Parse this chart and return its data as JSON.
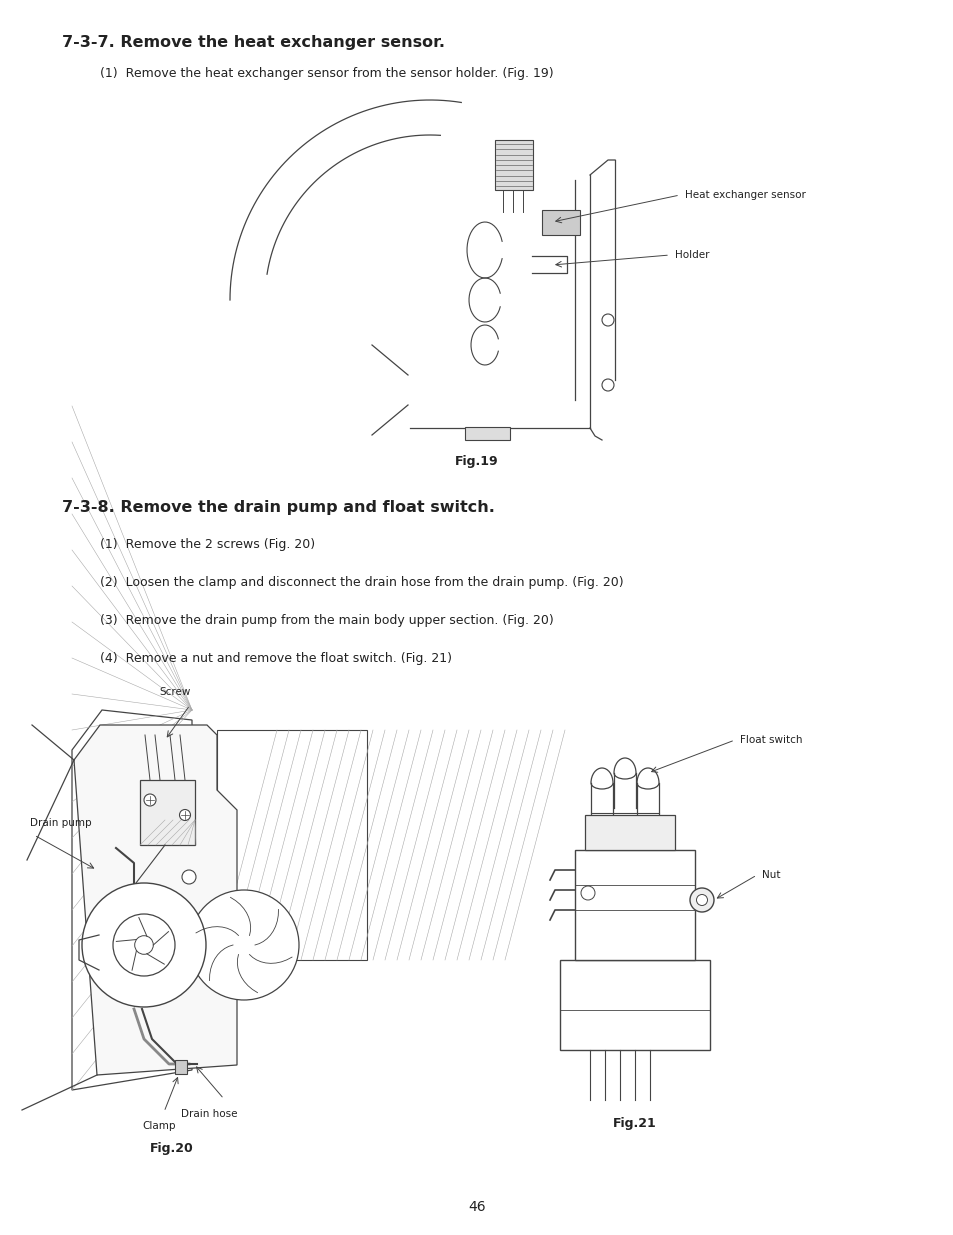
{
  "bg_color": "#ffffff",
  "page_width": 9.54,
  "page_height": 12.35,
  "title1": "7-3-7. Remove the heat exchanger sensor.",
  "step1_1": "(1)  Remove the heat exchanger sensor from the sensor holder. (Fig. 19)",
  "fig19_label": "Fig.19",
  "title2": "7-3-8. Remove the drain pump and float switch.",
  "step2_1": "(1)  Remove the 2 screws (Fig. 20)",
  "step2_2": "(2)  Loosen the clamp and disconnect the drain hose from the drain pump. (Fig. 20)",
  "step2_3": "(3)  Remove the drain pump from the main body upper section. (Fig. 20)",
  "step2_4": "(4)  Remove a nut and remove the float switch. (Fig. 21)",
  "fig20_label": "Fig.20",
  "fig21_label": "Fig.21",
  "page_number": "46",
  "lc": "#444444",
  "tc": "#222222"
}
